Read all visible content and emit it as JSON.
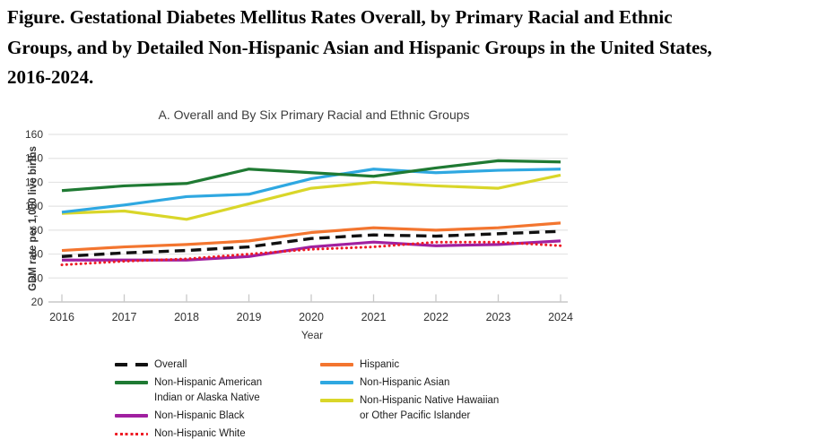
{
  "figure_title": {
    "lines": [
      "Figure. Gestational Diabetes Mellitus Rates Overall, by Primary Racial and Ethnic",
      "Groups, and by Detailed Non-Hispanic Asian and Hispanic Groups in the United States,",
      "2016-2024."
    ]
  },
  "chart": {
    "panel_title": "A. Overall and By  Six Primary Racial and Ethnic Groups",
    "y_axis_label": "GDM rate per 1,000 live births",
    "x_axis_label": "Year"
  },
  "chart_data": {
    "type": "line",
    "title": "A. Overall and By  Six Primary Racial and Ethnic Groups",
    "xlabel": "Year",
    "ylabel": "GDM rate per 1,000 live births",
    "ylim": [
      20,
      160
    ],
    "yticks": [
      160,
      140,
      120,
      100,
      80,
      60,
      40,
      20
    ],
    "grid": "horizontal",
    "legend_position": "bottom",
    "categories": [
      2016,
      2017,
      2018,
      2019,
      2020,
      2021,
      2022,
      2023,
      2024
    ],
    "series": [
      {
        "name": "Overall",
        "color": "#111111",
        "style": "dashed",
        "values": [
          58,
          61,
          63,
          66,
          73,
          76,
          75,
          77,
          79
        ]
      },
      {
        "name": "Non-Hispanic American Indian or Alaska Native",
        "color": "#1f7a33",
        "style": "solid",
        "values": [
          113,
          117,
          119,
          131,
          128,
          125,
          132,
          138,
          137
        ]
      },
      {
        "name": "Non-Hispanic Black",
        "color": "#a020a0",
        "style": "solid",
        "values": [
          55,
          55,
          55,
          58,
          66,
          70,
          67,
          68,
          71
        ]
      },
      {
        "name": "Non-Hispanic White",
        "color": "#ee1c25",
        "style": "dotted",
        "values": [
          51,
          54,
          56,
          60,
          64,
          66,
          70,
          70,
          67
        ]
      },
      {
        "name": "Hispanic",
        "color": "#f3752f",
        "style": "solid",
        "values": [
          63,
          66,
          68,
          71,
          78,
          82,
          80,
          82,
          86
        ]
      },
      {
        "name": "Non-Hispanic Asian",
        "color": "#2fa8e1",
        "style": "solid",
        "values": [
          95,
          101,
          108,
          110,
          123,
          131,
          128,
          130,
          131
        ]
      },
      {
        "name": "Non-Hispanic Native Hawaiian or Other Pacific Islander",
        "color": "#d9d629",
        "style": "solid",
        "values": [
          94,
          96,
          89,
          102,
          115,
          120,
          117,
          115,
          126
        ]
      }
    ]
  },
  "legend": {
    "columns": [
      {
        "items": [
          {
            "series_index": 0,
            "lines": [
              "Overall"
            ]
          },
          {
            "series_index": 1,
            "lines": [
              "Non-Hispanic American",
              "Indian or Alaska Native"
            ]
          },
          {
            "series_index": 2,
            "lines": [
              "Non-Hispanic Black"
            ]
          },
          {
            "series_index": 3,
            "lines": [
              "Non-Hispanic White"
            ]
          }
        ]
      },
      {
        "items": [
          {
            "series_index": 4,
            "lines": [
              "Hispanic"
            ]
          },
          {
            "series_index": 5,
            "lines": [
              "Non-Hispanic Asian"
            ]
          },
          {
            "series_index": 6,
            "lines": [
              "Non-Hispanic Native Hawaiian",
              "or Other Pacific Islander"
            ]
          }
        ]
      }
    ]
  },
  "colors": {
    "gridline": "#e4e4e4",
    "axis": "#c9c9c9",
    "tick_text": "#333333",
    "panel_title_text": "#3c3c3c"
  }
}
